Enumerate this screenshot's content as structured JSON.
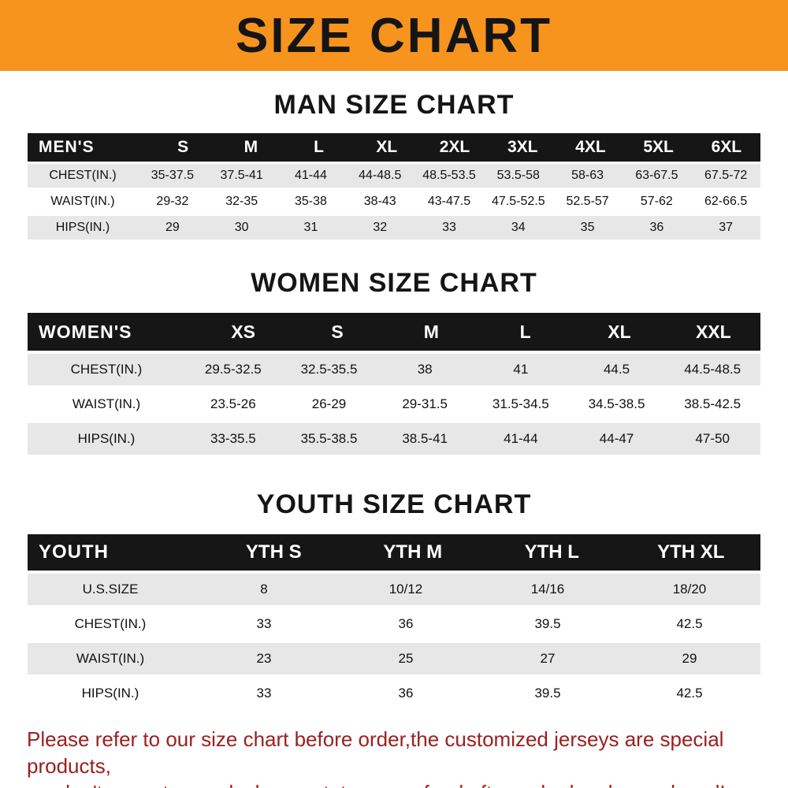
{
  "banner": {
    "title": "SIZE CHART"
  },
  "sections": [
    {
      "heading": "MAN SIZE CHART",
      "table": {
        "label": "MEN'S",
        "columns": [
          "S",
          "M",
          "L",
          "XL",
          "2XL",
          "3XL",
          "4XL",
          "5XL",
          "6XL"
        ],
        "rows": [
          {
            "label": "CHEST(IN.)",
            "values": [
              "35-37.5",
              "37.5-41",
              "41-44",
              "44-48.5",
              "48.5-53.5",
              "53.5-58",
              "58-63",
              "63-67.5",
              "67.5-72"
            ]
          },
          {
            "label": "WAIST(IN.)",
            "values": [
              "29-32",
              "32-35",
              "35-38",
              "38-43",
              "43-47.5",
              "47.5-52.5",
              "52.5-57",
              "57-62",
              "62-66.5"
            ]
          },
          {
            "label": "HIPS(IN.)",
            "values": [
              "29",
              "30",
              "31",
              "32",
              "33",
              "34",
              "35",
              "36",
              "37"
            ]
          }
        ]
      }
    },
    {
      "heading": "WOMEN SIZE CHART",
      "table": {
        "label": "WOMEN'S",
        "columns": [
          "XS",
          "S",
          "M",
          "L",
          "XL",
          "XXL"
        ],
        "rows": [
          {
            "label": "CHEST(IN.)",
            "values": [
              "29.5-32.5",
              "32.5-35.5",
              "38",
              "41",
              "44.5",
              "44.5-48.5"
            ]
          },
          {
            "label": "WAIST(IN.)",
            "values": [
              "23.5-26",
              "26-29",
              "29-31.5",
              "31.5-34.5",
              "34.5-38.5",
              "38.5-42.5"
            ]
          },
          {
            "label": "HIPS(IN.)",
            "values": [
              "33-35.5",
              "35.5-38.5",
              "38.5-41",
              "41-44",
              "44-47",
              "47-50"
            ]
          }
        ]
      }
    },
    {
      "heading": "YOUTH SIZE CHART",
      "table": {
        "label": "YOUTH",
        "columns": [
          "YTH S",
          "YTH M",
          "YTH L",
          "YTH XL"
        ],
        "rows": [
          {
            "label": "U.S.SIZE",
            "values": [
              "8",
              "10/12",
              "14/16",
              "18/20"
            ]
          },
          {
            "label": "CHEST(IN.)",
            "values": [
              "33",
              "36",
              "39.5",
              "42.5"
            ]
          },
          {
            "label": "WAIST(IN.)",
            "values": [
              "23",
              "25",
              "27",
              "29"
            ]
          },
          {
            "label": "HIPS(IN.)",
            "values": [
              "33",
              "36",
              "39.5",
              "42.5"
            ]
          }
        ]
      }
    }
  ],
  "footer": {
    "line1": "Please refer to our size chart before order,the customized jerseys are special products,",
    "line2": "we don't accept cancel, change, teturn or refund after order has been placed!"
  },
  "colors": {
    "banner_bg": "#F7941E",
    "table_header_bg": "#161616",
    "row_shade": "#E7E7E7",
    "footer_text": "#9A2020"
  }
}
